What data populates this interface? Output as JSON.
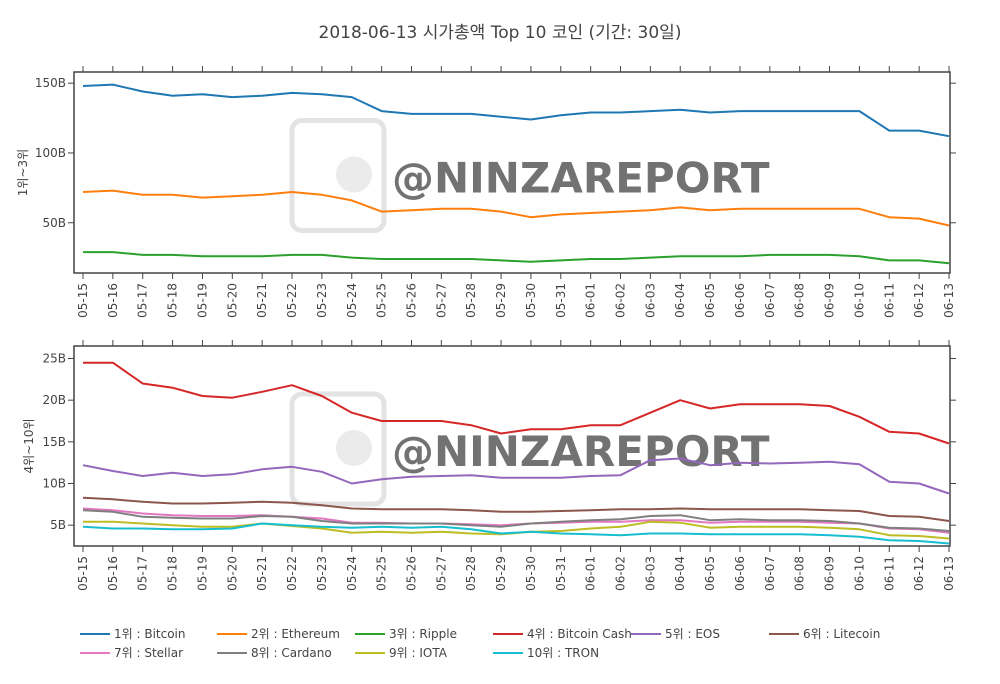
{
  "title": "2018-06-13 시가총액 Top 10 코인 (기간: 30일)",
  "watermark": "@NINZAREPORT",
  "chart_data": [
    {
      "type": "line",
      "ylabel": "1위~3위",
      "ylim": [
        14,
        158
      ],
      "yticks": [
        50,
        100,
        150
      ],
      "ytick_labels": [
        "50B",
        "100B",
        "150B"
      ],
      "x_start": "2018-05-15",
      "x_tick_labels": [
        "05-15",
        "05-16",
        "05-17",
        "05-18",
        "05-19",
        "05-20",
        "05-21",
        "05-22",
        "05-23",
        "05-24",
        "05-25",
        "05-26",
        "05-27",
        "05-28",
        "05-29",
        "05-30",
        "05-31",
        "06-01",
        "06-02",
        "06-03",
        "06-04",
        "06-05",
        "06-06",
        "06-07",
        "06-08",
        "06-09",
        "06-10",
        "06-11",
        "06-12",
        "06-13"
      ],
      "series": [
        {
          "name": "1위 : Bitcoin",
          "color": "#1f77b4",
          "values": [
            148,
            149,
            144,
            141,
            142,
            140,
            141,
            143,
            142,
            140,
            130,
            128,
            128,
            128,
            126,
            124,
            127,
            129,
            129,
            130,
            131,
            129,
            130,
            130,
            130,
            130,
            130,
            116,
            116,
            112
          ]
        },
        {
          "name": "2위 : Ethereum",
          "color": "#ff7f0e",
          "values": [
            72,
            73,
            70,
            70,
            68,
            69,
            70,
            72,
            70,
            66,
            58,
            59,
            60,
            60,
            58,
            54,
            56,
            57,
            58,
            59,
            61,
            59,
            60,
            60,
            60,
            60,
            60,
            54,
            53,
            48
          ]
        },
        {
          "name": "3위 : Ripple",
          "color": "#2ca02c",
          "values": [
            29,
            29,
            27,
            27,
            26,
            26,
            26,
            27,
            27,
            25,
            24,
            24,
            24,
            24,
            23,
            22,
            23,
            24,
            24,
            25,
            26,
            26,
            26,
            27,
            27,
            27,
            26,
            23,
            23,
            21
          ]
        }
      ]
    },
    {
      "type": "line",
      "ylabel": "4위~10위",
      "ylim": [
        2.5,
        26.5
      ],
      "yticks": [
        5,
        10,
        15,
        20,
        25
      ],
      "ytick_labels": [
        "5B",
        "10B",
        "15B",
        "20B",
        "25B"
      ],
      "x_start": "2018-05-15",
      "x_tick_labels": [
        "05-15",
        "05-16",
        "05-17",
        "05-18",
        "05-19",
        "05-20",
        "05-21",
        "05-22",
        "05-23",
        "05-24",
        "05-25",
        "05-26",
        "05-27",
        "05-28",
        "05-29",
        "05-30",
        "05-31",
        "06-01",
        "06-02",
        "06-03",
        "06-04",
        "06-05",
        "06-06",
        "06-07",
        "06-08",
        "06-09",
        "06-10",
        "06-11",
        "06-12",
        "06-13"
      ],
      "series": [
        {
          "name": "4위 : Bitcoin Cash",
          "color": "#d62728",
          "values": [
            24.5,
            24.5,
            22.0,
            21.5,
            20.5,
            20.3,
            21.0,
            21.8,
            20.5,
            18.5,
            17.5,
            17.5,
            17.5,
            17.0,
            16.0,
            16.5,
            16.5,
            17.0,
            17.0,
            18.5,
            20.0,
            19.0,
            19.5,
            19.5,
            19.5,
            19.3,
            18.0,
            16.2,
            16.0,
            14.8
          ]
        },
        {
          "name": "5위 : EOS",
          "color": "#9467bd",
          "values": [
            12.2,
            11.5,
            10.9,
            11.3,
            10.9,
            11.1,
            11.7,
            12.0,
            11.4,
            10.0,
            10.5,
            10.8,
            10.9,
            11.0,
            10.7,
            10.7,
            10.7,
            10.9,
            11.0,
            12.8,
            13.0,
            12.2,
            12.5,
            12.4,
            12.5,
            12.6,
            12.3,
            10.2,
            10.0,
            8.8
          ]
        },
        {
          "name": "6위 : Litecoin",
          "color": "#8c564b",
          "values": [
            8.3,
            8.1,
            7.8,
            7.6,
            7.6,
            7.7,
            7.8,
            7.7,
            7.4,
            7.0,
            6.9,
            6.9,
            6.9,
            6.8,
            6.6,
            6.6,
            6.7,
            6.8,
            6.9,
            6.9,
            7.0,
            6.9,
            6.9,
            6.9,
            6.9,
            6.8,
            6.7,
            6.1,
            6.0,
            5.5
          ]
        },
        {
          "name": "7위 : Stellar",
          "color": "#e377c2",
          "values": [
            7.0,
            6.8,
            6.4,
            6.2,
            6.1,
            6.1,
            6.2,
            6.0,
            5.8,
            5.3,
            5.3,
            5.2,
            5.2,
            5.1,
            5.0,
            5.2,
            5.3,
            5.4,
            5.4,
            5.6,
            5.6,
            5.3,
            5.4,
            5.4,
            5.4,
            5.3,
            5.2,
            4.6,
            4.5,
            4.1
          ]
        },
        {
          "name": "8위 : Cardano",
          "color": "#7f7f7f",
          "values": [
            6.8,
            6.6,
            6.0,
            5.9,
            5.8,
            5.8,
            6.1,
            6.0,
            5.5,
            5.2,
            5.2,
            5.2,
            5.2,
            5.0,
            4.8,
            5.2,
            5.4,
            5.6,
            5.7,
            6.1,
            6.2,
            5.6,
            5.7,
            5.6,
            5.6,
            5.5,
            5.2,
            4.7,
            4.6,
            4.3
          ]
        },
        {
          "name": "9위 : IOTA",
          "color": "#bcbd22",
          "values": [
            5.4,
            5.4,
            5.2,
            5.0,
            4.8,
            4.8,
            5.2,
            4.9,
            4.6,
            4.1,
            4.2,
            4.1,
            4.2,
            4.0,
            3.9,
            4.2,
            4.3,
            4.6,
            4.8,
            5.4,
            5.3,
            4.7,
            4.8,
            4.8,
            4.8,
            4.7,
            4.5,
            3.8,
            3.7,
            3.4
          ]
        },
        {
          "name": "10위 : TRON",
          "color": "#17becf",
          "values": [
            4.8,
            4.6,
            4.6,
            4.5,
            4.5,
            4.6,
            5.2,
            5.0,
            4.8,
            4.7,
            4.8,
            4.7,
            4.8,
            4.5,
            4.0,
            4.2,
            4.0,
            3.9,
            3.8,
            4.0,
            4.0,
            3.9,
            3.9,
            3.9,
            3.9,
            3.8,
            3.6,
            3.2,
            3.1,
            2.8
          ]
        }
      ]
    }
  ]
}
